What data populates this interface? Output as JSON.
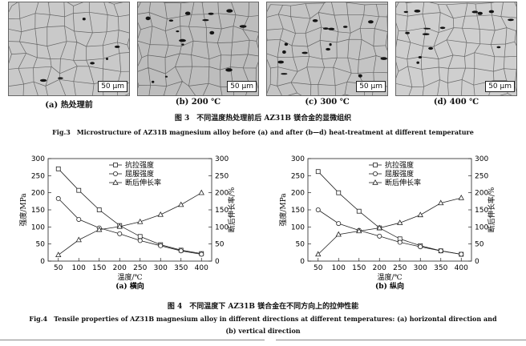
{
  "figure3": {
    "panels": [
      {
        "caption": "(a) 热处理前",
        "scale": "50 µm",
        "tone": "#c9c9c9"
      },
      {
        "caption": "(b) 200 ℃",
        "scale": "50 µm",
        "tone": "#bdbdbd"
      },
      {
        "caption": "(c) 300 ℃",
        "scale": "50 µm",
        "tone": "#c4c4c4"
      },
      {
        "caption": "(d) 400 ℃",
        "scale": "50 µm",
        "tone": "#cfcfcf"
      }
    ],
    "caption_cn": "图 3　不同温度热处理前后 AZ31B 镁合金的显微组织",
    "caption_en": "Fig.3　Microstructure of AZ31B magnesium alloy before (a) and after (b—d) heat-treatment at different temperature"
  },
  "figure4": {
    "caption_cn": "图 4　不同温度下 AZ31B 镁合金在不同方向上的拉伸性能",
    "caption_en_line1": "Fig.4　Tensile properties of AZ31B magnesium alloy in different directions at different temperatures: (a) horizontal direction and",
    "caption_en_line2": "(b) vertical direction"
  },
  "chart_data": [
    {
      "type": "line",
      "panel_label": "(a) 横向",
      "xlabel": "温度/℃",
      "ylabel": "强度/MPa",
      "y2label": "断后伸长率/%",
      "x": [
        50,
        100,
        150,
        200,
        250,
        300,
        350,
        400
      ],
      "xticks": [
        "50",
        "100",
        "150",
        "200",
        "250",
        "300",
        "350",
        "400"
      ],
      "yticks": [
        "0",
        "50",
        "100",
        "150",
        "200",
        "250",
        "300"
      ],
      "ylim": [
        0,
        300
      ],
      "y2lim": [
        0,
        300
      ],
      "legend_position": "top-center",
      "series": [
        {
          "name": "抗拉强度",
          "marker": "square",
          "axis": "left",
          "values": [
            270,
            207,
            150,
            104,
            72,
            48,
            32,
            22
          ]
        },
        {
          "name": "屈服强度",
          "marker": "circle",
          "axis": "left",
          "values": [
            183,
            122,
            97,
            80,
            60,
            45,
            30,
            20
          ]
        },
        {
          "name": "断后伸长率",
          "marker": "triangle",
          "axis": "right",
          "values": [
            18,
            62,
            92,
            101,
            115,
            136,
            165,
            200
          ]
        }
      ]
    },
    {
      "type": "line",
      "panel_label": "(b) 纵向",
      "xlabel": "温度/℃",
      "ylabel": "强度/MPa",
      "y2label": "断后伸长率/%",
      "x": [
        50,
        100,
        150,
        200,
        250,
        300,
        350,
        400
      ],
      "xticks": [
        "50",
        "100",
        "150",
        "200",
        "250",
        "300",
        "350",
        "400"
      ],
      "yticks": [
        "0",
        "50",
        "100",
        "150",
        "200",
        "250",
        "300"
      ],
      "ylim": [
        0,
        300
      ],
      "y2lim": [
        0,
        300
      ],
      "legend_position": "top-center",
      "series": [
        {
          "name": "抗拉强度",
          "marker": "square",
          "axis": "left",
          "values": [
            262,
            200,
            146,
            97,
            65,
            45,
            30,
            20
          ]
        },
        {
          "name": "屈服强度",
          "marker": "circle",
          "axis": "left",
          "values": [
            150,
            110,
            90,
            73,
            55,
            42,
            30,
            20
          ]
        },
        {
          "name": "断后伸长率",
          "marker": "triangle",
          "axis": "right",
          "values": [
            20,
            78,
            88,
            97,
            112,
            135,
            170,
            185
          ]
        }
      ]
    }
  ]
}
